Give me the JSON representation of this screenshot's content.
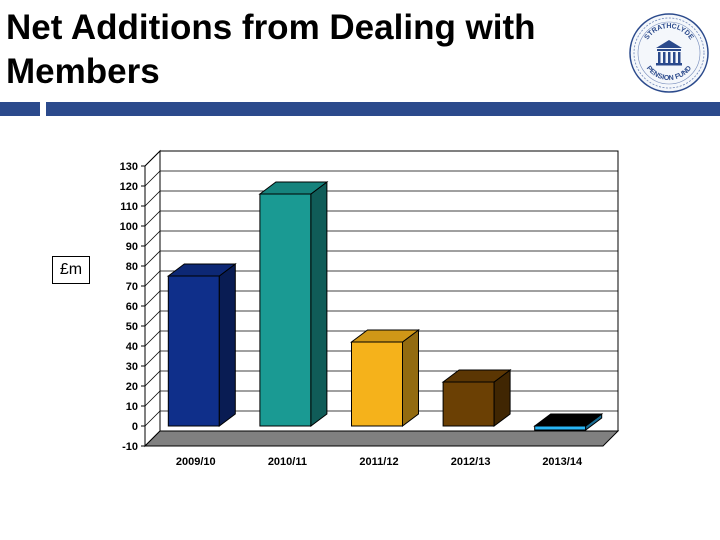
{
  "slide": {
    "title": "Net Additions from Dealing with Members",
    "unit_label": "£m"
  },
  "logo": {
    "text_top": "STRATHCLYDE",
    "text_bottom": "PENSION FUND"
  },
  "colors": {
    "accent_bar": "#2b4a8c",
    "wall": "#ffffff",
    "floor": "#808080"
  },
  "chart_data": {
    "type": "bar",
    "categories": [
      "2009/10",
      "2010/11",
      "2011/12",
      "2012/13",
      "2013/14"
    ],
    "values": [
      75,
      116,
      42,
      22,
      -2
    ],
    "bar_colors": [
      "#0f2f8a",
      "#1a9a93",
      "#f5b21b",
      "#6b4004",
      "#29b6f6"
    ],
    "ylim": [
      -10,
      130
    ],
    "yticks": [
      130,
      120,
      110,
      100,
      90,
      80,
      70,
      60,
      50,
      40,
      30,
      20,
      10,
      0,
      -10
    ],
    "grid": true,
    "three_d": true
  }
}
